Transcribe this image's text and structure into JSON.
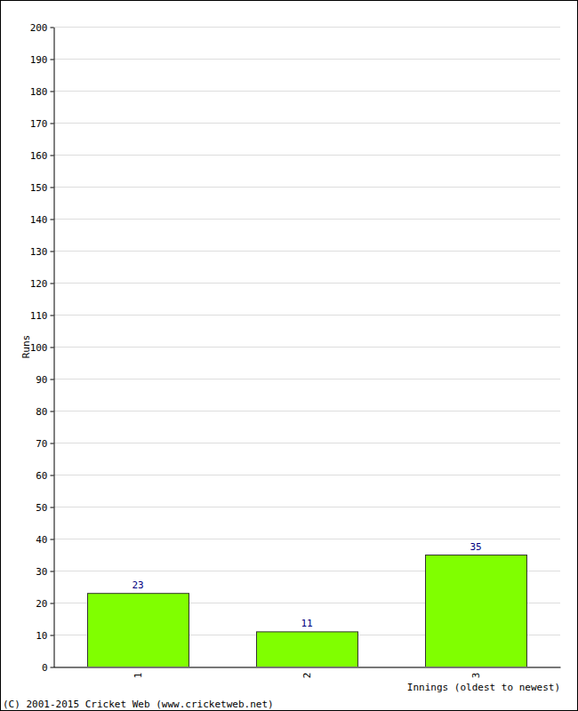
{
  "chart_data": {
    "type": "bar",
    "categories": [
      "1",
      "2",
      "3"
    ],
    "values": [
      23,
      11,
      35
    ],
    "color": "#80ff00",
    "ylim": [
      0,
      200
    ],
    "yticks": [
      0,
      10,
      20,
      30,
      40,
      50,
      60,
      70,
      80,
      90,
      100,
      110,
      120,
      130,
      140,
      150,
      160,
      170,
      180,
      190,
      200
    ],
    "grid": true,
    "data_labels": true,
    "y_label": "Runs",
    "x_label": "Innings (oldest to newest)",
    "annotations": [
      "(C) 2001-2015 Cricket Web (www.cricketweb.net)"
    ]
  }
}
